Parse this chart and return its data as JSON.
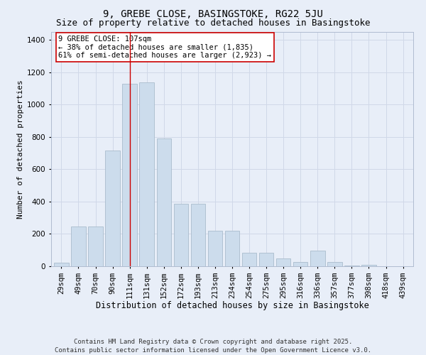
{
  "title1": "9, GREBE CLOSE, BASINGSTOKE, RG22 5JU",
  "title2": "Size of property relative to detached houses in Basingstoke",
  "xlabel": "Distribution of detached houses by size in Basingstoke",
  "ylabel": "Number of detached properties",
  "categories": [
    "29sqm",
    "49sqm",
    "70sqm",
    "90sqm",
    "111sqm",
    "131sqm",
    "152sqm",
    "172sqm",
    "193sqm",
    "213sqm",
    "234sqm",
    "254sqm",
    "275sqm",
    "295sqm",
    "316sqm",
    "336sqm",
    "357sqm",
    "377sqm",
    "398sqm",
    "418sqm",
    "439sqm"
  ],
  "values": [
    20,
    245,
    245,
    715,
    1130,
    1140,
    790,
    385,
    385,
    220,
    220,
    85,
    85,
    48,
    28,
    95,
    28,
    5,
    8,
    0,
    0
  ],
  "bar_color": "#ccdcec",
  "bar_edge_color": "#aabccc",
  "grid_color": "#d0d8e8",
  "background_color": "#e8eef8",
  "vline_x": 4.0,
  "vline_color": "#cc0000",
  "annotation_text": "9 GREBE CLOSE: 107sqm\n← 38% of detached houses are smaller (1,835)\n61% of semi-detached houses are larger (2,923) →",
  "annotation_box_color": "#ffffff",
  "annotation_box_edge": "#cc0000",
  "ylim": [
    0,
    1450
  ],
  "yticks": [
    0,
    200,
    400,
    600,
    800,
    1000,
    1200,
    1400
  ],
  "footer_text": "Contains HM Land Registry data © Crown copyright and database right 2025.\nContains public sector information licensed under the Open Government Licence v3.0.",
  "title1_fontsize": 10,
  "title2_fontsize": 9,
  "xlabel_fontsize": 8.5,
  "ylabel_fontsize": 8,
  "tick_fontsize": 7.5,
  "annotation_fontsize": 7.5,
  "footer_fontsize": 6.5
}
